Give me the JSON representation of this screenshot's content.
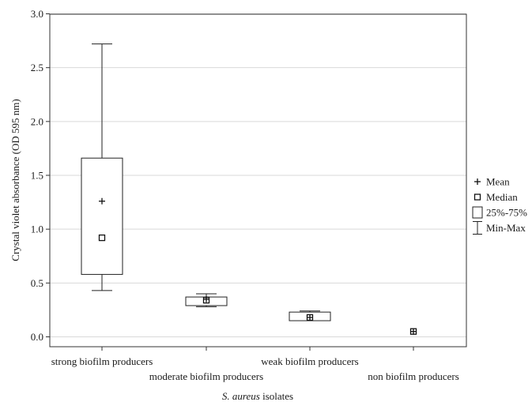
{
  "chart_data": {
    "type": "box",
    "categories": [
      "strong biofilm producers",
      "moderate biofilm producers",
      "weak biofilm producers",
      "non biofilm producers"
    ],
    "boxes": [
      {
        "category": "strong biofilm producers",
        "min": 0.43,
        "q1": 0.58,
        "median": 0.92,
        "mean": 1.26,
        "q3": 1.66,
        "max": 2.72
      },
      {
        "category": "moderate biofilm producers",
        "min": 0.28,
        "q1": 0.29,
        "median": 0.34,
        "mean": 0.35,
        "q3": 0.37,
        "max": 0.4
      },
      {
        "category": "weak biofilm producers",
        "min": 0.15,
        "q1": 0.15,
        "median": 0.18,
        "mean": 0.18,
        "q3": 0.23,
        "max": 0.24
      },
      {
        "category": "non biofilm producers",
        "min": 0.05,
        "q1": 0.05,
        "median": 0.05,
        "mean": 0.05,
        "q3": 0.05,
        "max": 0.05
      }
    ],
    "ylabel": "Crystal violet absorbance (OD 595 nm)",
    "xlabel_italic": "S. aureus",
    "xlabel_rest": " isolates",
    "ylim": [
      0.0,
      3.0
    ],
    "yticks": [
      "0.0",
      "0.5",
      "1.0",
      "1.5",
      "2.0",
      "2.5",
      "3.0"
    ],
    "grid": true,
    "legend_position": "right",
    "legend": [
      {
        "symbol": "plus",
        "label": "Mean"
      },
      {
        "symbol": "square",
        "label": "Median"
      },
      {
        "symbol": "box",
        "label": "25%-75%"
      },
      {
        "symbol": "whisker",
        "label": "Min-Max"
      }
    ]
  }
}
